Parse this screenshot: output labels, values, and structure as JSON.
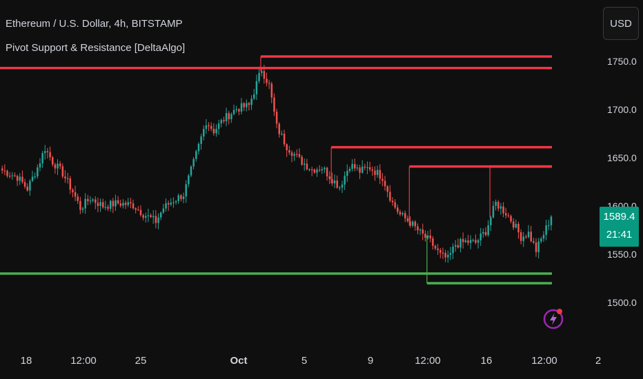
{
  "header": {
    "title": "Ethereum / U.S. Dollar, 4h, BITSTAMP",
    "indicator": "Pivot Support & Resistance [DeltaAlgo]"
  },
  "currency_button": "USD",
  "last_price": {
    "value": "1589.4",
    "countdown": "21:41",
    "color": "#089981"
  },
  "colors": {
    "up": "#26a69a",
    "down": "#ef5350",
    "resistance": "#f23645",
    "support": "#4caf50",
    "background": "#0f0f0f",
    "text": "#d1d4dc"
  },
  "icons": {
    "alert": "lightning-bolt-icon"
  },
  "chart_data": {
    "type": "candlestick",
    "yaxis": {
      "ticks": [
        1750.0,
        1700.0,
        1650.0,
        1600.0,
        1550.0,
        1500.0
      ],
      "tick_labels": [
        "1750.0",
        "1700.0",
        "1650.0",
        "1600.0",
        "1550.0",
        "1500.0"
      ],
      "ylim": [
        1480,
        1790
      ]
    },
    "xaxis": {
      "tick_labels": [
        "18",
        "12:00",
        "25",
        "Oct",
        "5",
        "9",
        "12:00",
        "16",
        "12:00",
        "2"
      ],
      "n_bars": 180
    },
    "anchors": [
      [
        0,
        1637
      ],
      [
        6,
        1630
      ],
      [
        10,
        1618
      ],
      [
        14,
        1640
      ],
      [
        17,
        1660
      ],
      [
        20,
        1646
      ],
      [
        24,
        1634
      ],
      [
        28,
        1615
      ],
      [
        31,
        1598
      ],
      [
        35,
        1608
      ],
      [
        40,
        1600
      ],
      [
        46,
        1603
      ],
      [
        52,
        1601
      ],
      [
        56,
        1592
      ],
      [
        61,
        1584
      ],
      [
        64,
        1598
      ],
      [
        68,
        1606
      ],
      [
        72,
        1612
      ],
      [
        76,
        1645
      ],
      [
        81,
        1688
      ],
      [
        84,
        1678
      ],
      [
        88,
        1690
      ],
      [
        93,
        1701
      ],
      [
        98,
        1704
      ],
      [
        103,
        1742
      ],
      [
        106,
        1725
      ],
      [
        109,
        1682
      ],
      [
        113,
        1662
      ],
      [
        118,
        1648
      ],
      [
        123,
        1638
      ],
      [
        127,
        1640
      ],
      [
        131,
        1628
      ],
      [
        134,
        1620
      ],
      [
        138,
        1643
      ],
      [
        142,
        1636
      ],
      [
        146,
        1640
      ],
      [
        151,
        1630
      ],
      [
        155,
        1603
      ],
      [
        158,
        1591
      ],
      [
        162,
        1583
      ],
      [
        166,
        1572
      ],
      [
        170,
        1563
      ],
      [
        174,
        1549
      ],
      [
        177,
        1545
      ],
      [
        180,
        1560
      ],
      [
        184,
        1563
      ],
      [
        188,
        1562
      ],
      [
        192,
        1574
      ],
      [
        196,
        1603
      ],
      [
        200,
        1593
      ],
      [
        203,
        1582
      ],
      [
        206,
        1568
      ],
      [
        209,
        1572
      ],
      [
        212,
        1554
      ],
      [
        215,
        1571
      ],
      [
        218,
        1589
      ]
    ],
    "levels": [
      {
        "type": "resistance",
        "value": 1755,
        "from_bar": 103
      },
      {
        "type": "resistance",
        "value": 1743,
        "from_bar": 0
      },
      {
        "type": "resistance",
        "value": 1661,
        "from_bar": 131
      },
      {
        "type": "resistance",
        "value": 1641,
        "from_bar": 162,
        "step_to": 1641
      },
      {
        "type": "resistance",
        "value": 1641,
        "from_bar": 194
      },
      {
        "type": "support",
        "value": 1530,
        "from_bar": 0
      },
      {
        "type": "support",
        "value": 1520,
        "from_bar": 169
      }
    ]
  }
}
